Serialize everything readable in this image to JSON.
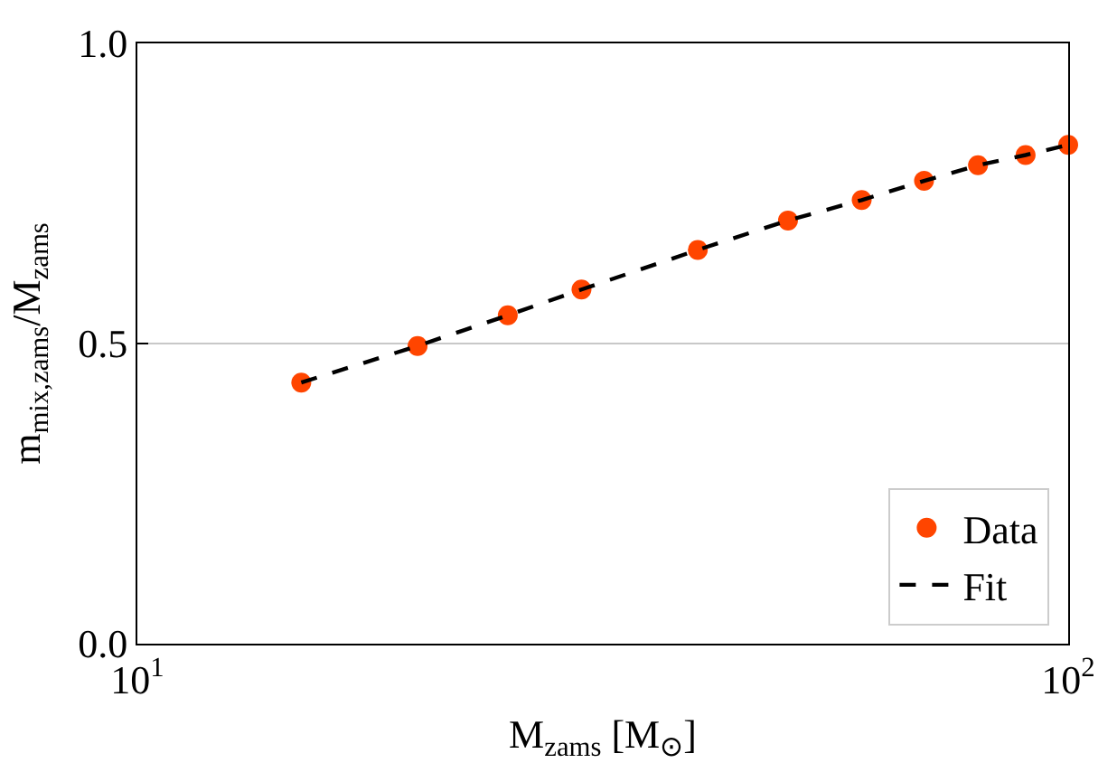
{
  "chart_data": {
    "type": "scatter",
    "xlabel": "M$_{zams}$ [M$_{⊙}$]",
    "ylabel": "m$_{mix,zams}$/M$_{zams}$",
    "x": [
      15,
      20,
      25,
      30,
      40,
      50,
      60,
      70,
      80,
      90,
      100
    ],
    "series": [
      {
        "name": "Data",
        "type": "scatter",
        "marker": "circle",
        "color": "#ff4500",
        "values": [
          0.435,
          0.496,
          0.547,
          0.59,
          0.656,
          0.705,
          0.739,
          0.771,
          0.797,
          0.814,
          0.831
        ]
      },
      {
        "name": "Fit",
        "type": "line",
        "marker": "none",
        "line_style": "dashed",
        "color": "#000000",
        "values": [
          0.435,
          0.496,
          0.547,
          0.59,
          0.656,
          0.705,
          0.739,
          0.771,
          0.797,
          0.814,
          0.831
        ]
      }
    ],
    "log": "x",
    "xlim": [
      10,
      100
    ],
    "xticks": [
      {
        "value": 10,
        "label": "10$^{1}$"
      },
      {
        "value": 100,
        "label": "10$^{2}$"
      }
    ],
    "ylim": [
      0,
      1
    ],
    "yticks": [
      {
        "value": 0,
        "label": "0.0"
      },
      {
        "value": 0.5,
        "label": "0.5"
      },
      {
        "value": 1,
        "label": "1.0"
      }
    ],
    "grid": true,
    "legend": "bottom right"
  }
}
